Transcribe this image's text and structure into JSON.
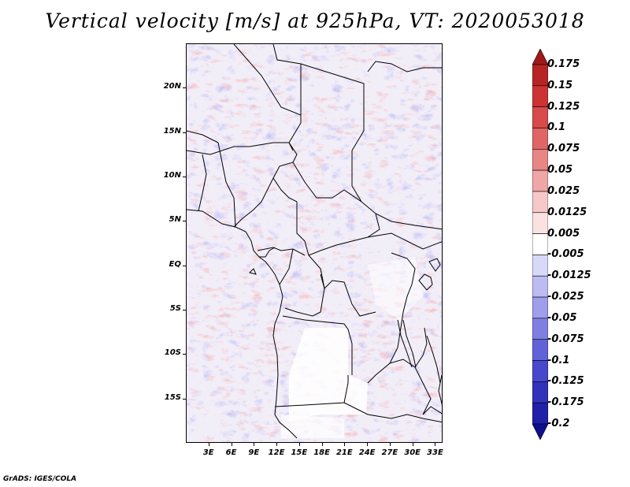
{
  "title": "Vertical velocity [m/s] at 925hPa, VT: 2020053018",
  "credit": "GrADS: IGES/COLA",
  "map": {
    "lat_range": [
      -20,
      25
    ],
    "lon_range": [
      0,
      34
    ],
    "lat_labels": [
      {
        "lat": 20,
        "text": "20N"
      },
      {
        "lat": 15,
        "text": "15N"
      },
      {
        "lat": 10,
        "text": "10N"
      },
      {
        "lat": 5,
        "text": "5N"
      },
      {
        "lat": 0,
        "text": "EQ"
      },
      {
        "lat": -5,
        "text": "5S"
      },
      {
        "lat": -10,
        "text": "10S"
      },
      {
        "lat": -15,
        "text": "15S"
      }
    ],
    "lon_labels": [
      {
        "lon": 3,
        "text": "3E"
      },
      {
        "lon": 6,
        "text": "6E"
      },
      {
        "lon": 9,
        "text": "9E"
      },
      {
        "lon": 12,
        "text": "12E"
      },
      {
        "lon": 15,
        "text": "15E"
      },
      {
        "lon": 18,
        "text": "18E"
      },
      {
        "lon": 21,
        "text": "21E"
      },
      {
        "lon": 24,
        "text": "24E"
      },
      {
        "lon": 27,
        "text": "27E"
      },
      {
        "lon": 30,
        "text": "30E"
      },
      {
        "lon": 33,
        "text": "33E"
      }
    ]
  },
  "colorbar": {
    "labels": [
      "0.175",
      "0.15",
      "0.125",
      "0.1",
      "0.075",
      "0.05",
      "0.025",
      "0.0125",
      "0.005",
      "-0.005",
      "-0.0125",
      "-0.025",
      "-0.05",
      "-0.075",
      "-0.1",
      "-0.125",
      "-0.175",
      "-0.2"
    ],
    "colors": [
      "#9e1a1a",
      "#b82424",
      "#cc3434",
      "#d94a4a",
      "#e06666",
      "#e88585",
      "#f0a6a6",
      "#f7c8c8",
      "#fbe2e2",
      "#ffffff",
      "#d8d8f8",
      "#bcbcf2",
      "#9e9eec",
      "#7f7fe3",
      "#6262d8",
      "#4848cc",
      "#3232bb",
      "#2020a8",
      "#10108e"
    ]
  }
}
